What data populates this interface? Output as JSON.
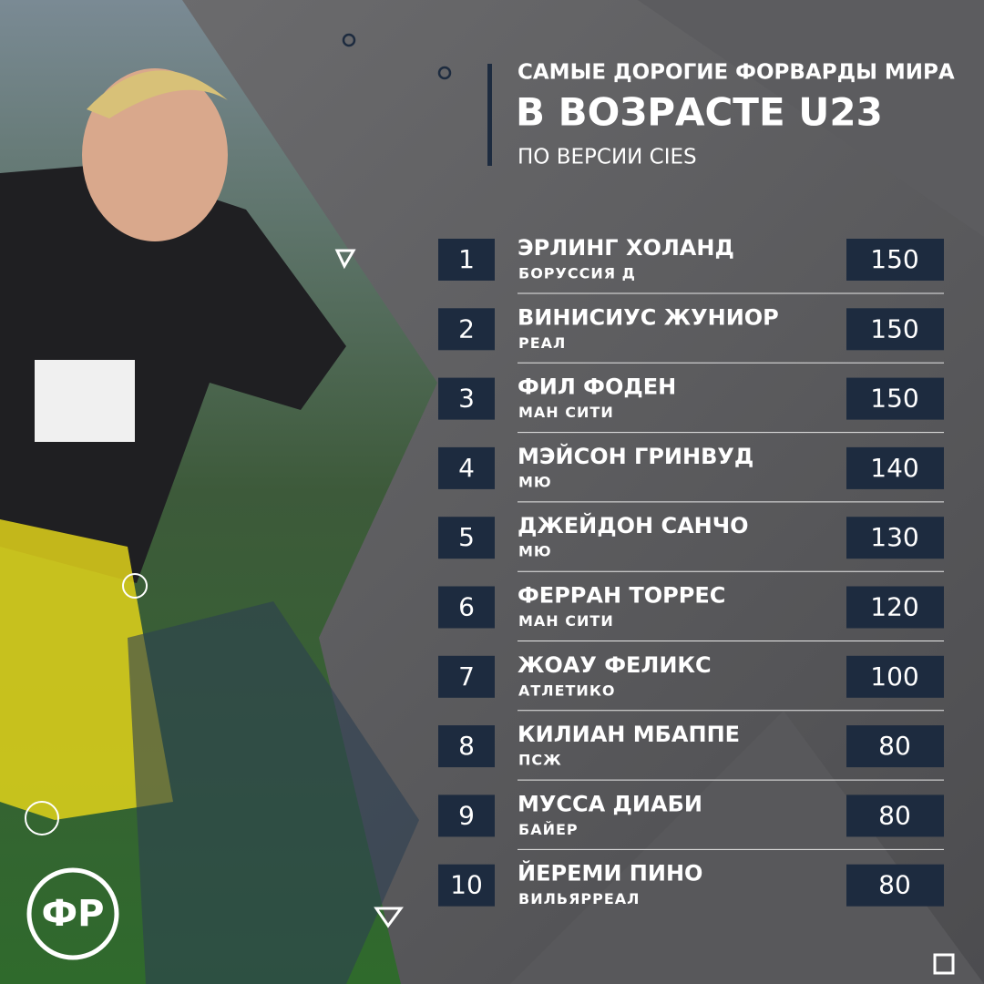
{
  "header": {
    "line1": "САМЫЕ ДОРОГИЕ ФОРВАРДЫ МИРА",
    "line2": "В ВОЗРАСТЕ U23",
    "subtitle": "ПО ВЕРСИИ CIES"
  },
  "logo": "ФР",
  "table": {
    "rows": [
      {
        "rank": 1,
        "name": "ЭРЛИНГ ХОЛАНД",
        "club": "БОРУССИЯ Д",
        "value": 150
      },
      {
        "rank": 2,
        "name": "ВИНИСИУС ЖУНИОР",
        "club": "РЕАЛ",
        "value": 150
      },
      {
        "rank": 3,
        "name": "ФИЛ ФОДЕН",
        "club": "МАН СИТИ",
        "value": 150
      },
      {
        "rank": 4,
        "name": "МЭЙСОН ГРИНВУД",
        "club": "МЮ",
        "value": 140
      },
      {
        "rank": 5,
        "name": "ДЖЕЙДОН САНЧО",
        "club": "МЮ",
        "value": 130
      },
      {
        "rank": 6,
        "name": "ФЕРРАН ТОРРЕС",
        "club": "МАН СИТИ",
        "value": 120
      },
      {
        "rank": 7,
        "name": "ЖОАУ ФЕЛИКС",
        "club": "АТЛЕТИКО",
        "value": 100
      },
      {
        "rank": 8,
        "name": "КИЛИАН МБАППЕ",
        "club": "ПСЖ",
        "value": 80
      },
      {
        "rank": 9,
        "name": "МУССА ДИАБИ",
        "club": "БАЙЕР",
        "value": 80
      },
      {
        "rank": 10,
        "name": "ЙЕРЕМИ ПИНО",
        "club": "ВИЛЬЯРРЕАЛ",
        "value": 80
      }
    ]
  }
}
